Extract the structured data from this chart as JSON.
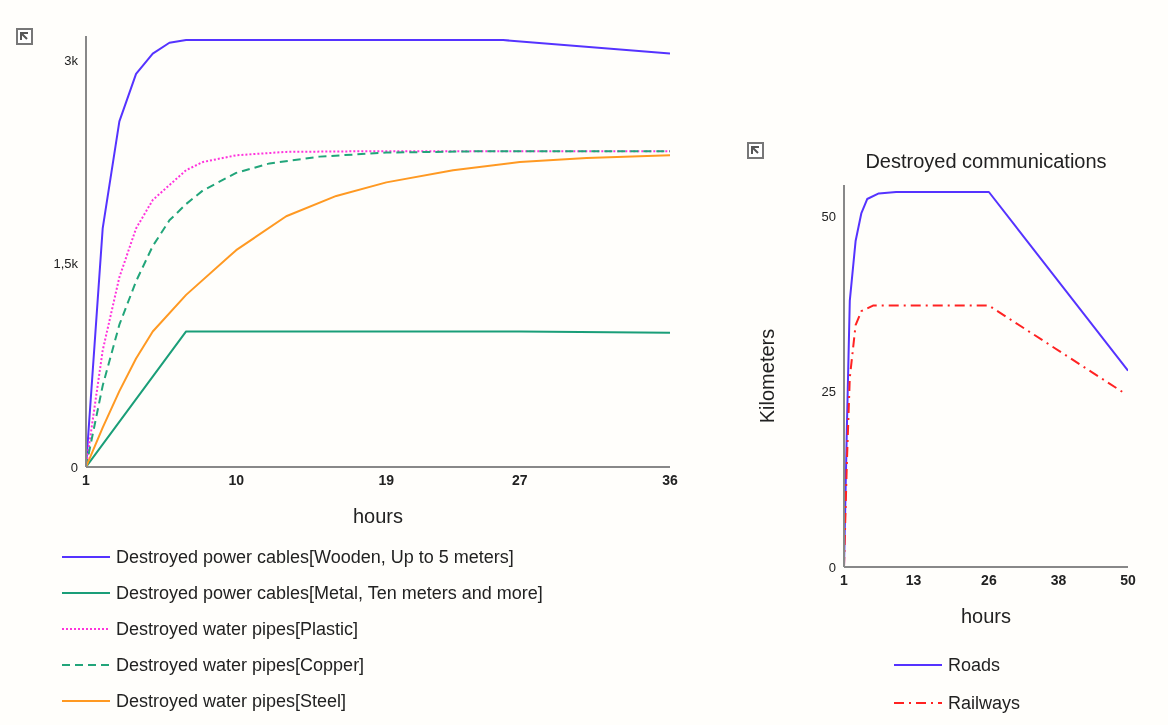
{
  "chart_data": [
    {
      "type": "line",
      "xlabel": "hours",
      "legend": "bottom",
      "xlim": [
        1,
        36
      ],
      "xticks": [
        1,
        10,
        19,
        27,
        36
      ],
      "ylim": [
        0,
        3180
      ],
      "yticks": [
        0,
        {
          "value": 1500,
          "label": "1,5k"
        },
        {
          "value": 3000,
          "label": "3k"
        }
      ],
      "grid": false,
      "series": [
        {
          "name": "Destroyed power cables[Wooden, Up to 5 meters]",
          "color": "#5533ff",
          "line_style": "solid",
          "x": [
            1,
            2,
            3,
            4,
            5,
            6,
            7,
            26,
            36
          ],
          "values": [
            0,
            1760,
            2550,
            2900,
            3050,
            3130,
            3150,
            3150,
            3050
          ]
        },
        {
          "name": "Destroyed power cables[Metal, Ten meters and more]",
          "color": "#1a9e78",
          "line_style": "solid",
          "x": [
            1,
            7,
            27,
            36
          ],
          "values": [
            0,
            1000,
            1000,
            990
          ]
        },
        {
          "name": "Destroyed water pipes[Plastic]",
          "color": "#ff33dd",
          "line_style": "dotted",
          "x": [
            1,
            2,
            3,
            4,
            5,
            6,
            7,
            8,
            10,
            13,
            18,
            36
          ],
          "values": [
            0,
            860,
            1400,
            1760,
            1970,
            2080,
            2190,
            2250,
            2300,
            2325,
            2330,
            2330
          ]
        },
        {
          "name": "Destroyed water pipes[Copper]",
          "color": "#22a57a",
          "line_style": "dashed",
          "x": [
            1,
            2,
            3,
            4,
            5,
            6,
            7,
            8,
            10,
            12,
            15,
            19,
            25,
            36
          ],
          "values": [
            0,
            600,
            1050,
            1370,
            1630,
            1820,
            1940,
            2040,
            2170,
            2240,
            2290,
            2320,
            2330,
            2330
          ]
        },
        {
          "name": "Destroyed water pipes[Steel]",
          "color": "#ff9922",
          "line_style": "solid",
          "x": [
            1,
            2,
            3,
            4,
            5,
            7,
            10,
            13,
            16,
            19,
            23,
            27,
            31,
            36
          ],
          "values": [
            0,
            290,
            560,
            800,
            1000,
            1270,
            1600,
            1850,
            2000,
            2100,
            2190,
            2250,
            2280,
            2300
          ]
        }
      ]
    },
    {
      "type": "line",
      "title": "Destroyed communications",
      "xlabel": "hours",
      "ylabel": "Kilometers",
      "legend": "bottom",
      "xlim": [
        1,
        50
      ],
      "xticks": [
        1,
        13,
        26,
        38,
        50
      ],
      "ylim": [
        0,
        54.5
      ],
      "yticks": [
        0,
        25,
        50
      ],
      "grid": false,
      "series": [
        {
          "name": "Roads",
          "color": "#5533ff",
          "line_style": "solid",
          "x": [
            1,
            1.5,
            2,
            3,
            4,
            5,
            7,
            10,
            26,
            50
          ],
          "values": [
            0,
            20,
            38,
            46.5,
            50.5,
            52.5,
            53.3,
            53.5,
            53.5,
            28
          ]
        },
        {
          "name": "Railways",
          "color": "#ff2222",
          "line_style": "dashdot",
          "x": [
            1,
            1.5,
            2,
            3,
            4,
            6,
            26,
            49
          ],
          "values": [
            0,
            15,
            27,
            34.5,
            36.5,
            37.3,
            37.3,
            25
          ]
        }
      ]
    }
  ]
}
